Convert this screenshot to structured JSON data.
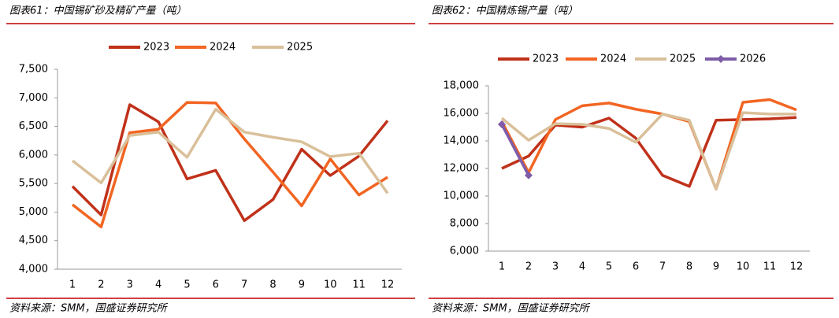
{
  "chart_data": [
    {
      "type": "line",
      "title": "图表61：中国锡矿砂及精矿产量（吨）",
      "source": "资料来源：SMM，国盛证券研究所",
      "categories": [
        "1",
        "2",
        "3",
        "4",
        "5",
        "6",
        "7",
        "8",
        "9",
        "10",
        "11",
        "12"
      ],
      "series": [
        {
          "name": "2023",
          "color": "#c0311a",
          "values": [
            5450,
            4950,
            6880,
            6580,
            5580,
            5730,
            4850,
            5220,
            6100,
            5640,
            5980,
            6600
          ]
        },
        {
          "name": "2024",
          "color": "#f26522",
          "values": [
            5130,
            4740,
            6390,
            6450,
            6920,
            6910,
            6280,
            5700,
            5110,
            5930,
            5300,
            5610
          ]
        },
        {
          "name": "2025",
          "color": "#d9c09a",
          "values": [
            5900,
            5510,
            6340,
            6400,
            5960,
            6800,
            6400,
            6310,
            6230,
            5970,
            6030,
            5330
          ]
        }
      ],
      "ylim": [
        4000,
        7500
      ],
      "yticks": [
        {
          "value": 4000,
          "label": "4,000"
        },
        {
          "value": 4500,
          "label": "4,500"
        },
        {
          "value": 5000,
          "label": "5,000"
        },
        {
          "value": 5500,
          "label": "5,500"
        },
        {
          "value": 6000,
          "label": "6,000"
        },
        {
          "value": 6500,
          "label": "6,500"
        },
        {
          "value": 7000,
          "label": "7,000"
        },
        {
          "value": 7500,
          "label": "7,500"
        }
      ],
      "legend": "top"
    },
    {
      "type": "line",
      "title": "图表62：中国精炼锡产量（吨）",
      "source": "资料来源：SMM，国盛证券研究所",
      "categories": [
        "1",
        "2",
        "3",
        "4",
        "5",
        "6",
        "7",
        "8",
        "9",
        "10",
        "11",
        "12"
      ],
      "series": [
        {
          "name": "2023",
          "color": "#c0311a",
          "values": [
            12000,
            12900,
            15150,
            15000,
            15650,
            14200,
            11500,
            10700,
            15500,
            15550,
            15600,
            15700
          ]
        },
        {
          "name": "2024",
          "color": "#f26522",
          "values": [
            15400,
            11700,
            15550,
            16550,
            16750,
            16300,
            15950,
            15400,
            10500,
            16800,
            17000,
            16250
          ]
        },
        {
          "name": "2025",
          "color": "#d9c09a",
          "values": [
            15650,
            14050,
            15250,
            15200,
            14900,
            13900,
            15950,
            15500,
            10500,
            16050,
            15950,
            15950
          ]
        },
        {
          "name": "2026",
          "color": "#7e5ca8",
          "marker": "diamond",
          "values": [
            15200,
            11500,
            null,
            null,
            null,
            null,
            null,
            null,
            null,
            null,
            null,
            null
          ]
        }
      ],
      "ylim": [
        6000,
        18000
      ],
      "yticks": [
        {
          "value": 6000,
          "label": "6,000"
        },
        {
          "value": 8000,
          "label": "8,000"
        },
        {
          "value": 10000,
          "label": "10,000"
        },
        {
          "value": 12000,
          "label": "12,000"
        },
        {
          "value": 14000,
          "label": "14,000"
        },
        {
          "value": 16000,
          "label": "16,000"
        },
        {
          "value": 18000,
          "label": "18,000"
        }
      ],
      "legend": "top"
    }
  ]
}
